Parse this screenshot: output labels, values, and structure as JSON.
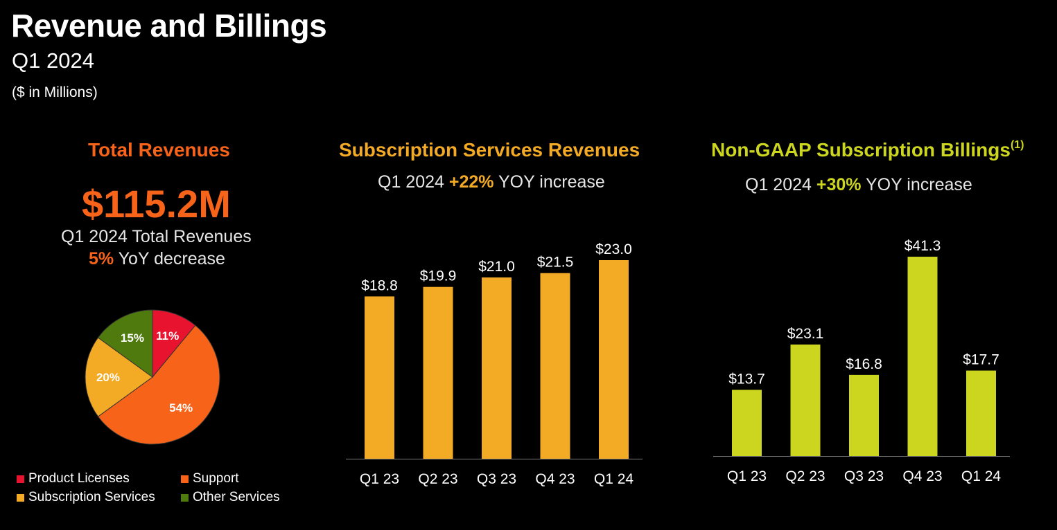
{
  "header": {
    "title": "Revenue and Billings",
    "subtitle": "Q1 2024",
    "units": "($ in Millions)"
  },
  "colors": {
    "orange": "#f76318",
    "amber": "#f3aa24",
    "lime": "#ccd61f",
    "red": "#e8132e",
    "green": "#4f7a0e"
  },
  "total_revenues": {
    "title": "Total Revenues",
    "amount": "$115.2M",
    "line1": "Q1 2024 Total Revenues",
    "change_pct": "5%",
    "change_text": " YoY decrease"
  },
  "subscription_revenues": {
    "title": "Subscription Services Revenues",
    "yoy_prefix": "Q1 2024 ",
    "yoy_pct": "+22%",
    "yoy_suffix": " YOY increase"
  },
  "subscription_billings": {
    "title": "Non-GAAP Subscription Billings",
    "footnote": "(1)",
    "yoy_prefix": "Q1 2024 ",
    "yoy_pct": "+30%",
    "yoy_suffix": " YOY increase"
  },
  "chart_data": [
    {
      "type": "pie",
      "title": "Total Revenues",
      "categories": [
        "Product Licenses",
        "Support",
        "Subscription Services",
        "Other Services"
      ],
      "values": [
        11,
        54,
        20,
        15
      ],
      "labels": [
        "11%",
        "54%",
        "20%",
        "15%"
      ],
      "colors": [
        "#e8132e",
        "#f76318",
        "#f3aa24",
        "#4f7a0e"
      ],
      "legend": "bottom"
    },
    {
      "type": "bar",
      "title": "Subscription Services Revenues",
      "categories": [
        "Q1 23",
        "Q2 23",
        "Q3 23",
        "Q4 23",
        "Q1 24"
      ],
      "values": [
        18.8,
        19.9,
        21.0,
        21.5,
        23.0
      ],
      "labels": [
        "$18.8",
        "$19.9",
        "$21.0",
        "$21.5",
        "$23.0"
      ],
      "color": "#f3aa24",
      "ylim": [
        0,
        23.0
      ]
    },
    {
      "type": "bar",
      "title": "Non-GAAP Subscription Billings",
      "categories": [
        "Q1 23",
        "Q2 23",
        "Q3 23",
        "Q4 23",
        "Q1 24"
      ],
      "values": [
        13.7,
        23.1,
        16.8,
        41.3,
        17.7
      ],
      "labels": [
        "$13.7",
        "$23.1",
        "$16.8",
        "$41.3",
        "$17.7"
      ],
      "color": "#ccd61f",
      "ylim": [
        0,
        41.3
      ]
    }
  ]
}
